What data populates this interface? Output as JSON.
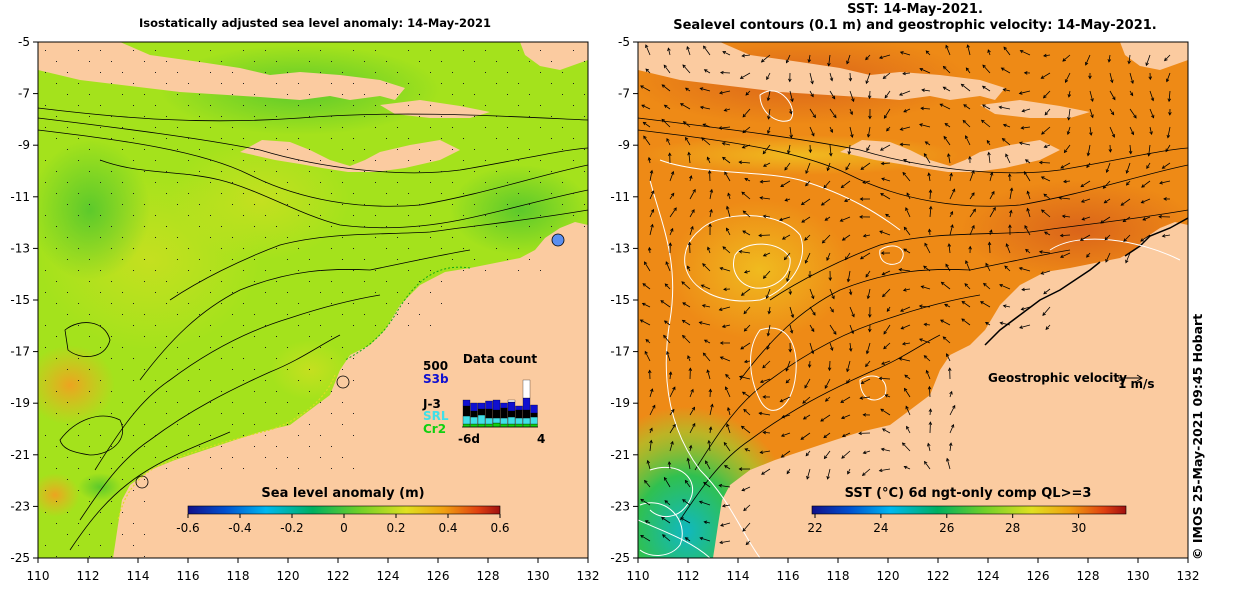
{
  "maps": [
    {
      "title": "Isostatically adjusted sea level anomaly: 14-May-2021",
      "lon_range": [
        110,
        132
      ],
      "lat_range": [
        -25,
        -5
      ],
      "x_ticks": [
        "110",
        "112",
        "114",
        "116",
        "118",
        "120",
        "122",
        "124",
        "126",
        "128",
        "130",
        "132"
      ],
      "y_ticks": [
        "-5",
        "-7",
        "-9",
        "-11",
        "-13",
        "-15",
        "-17",
        "-19",
        "-21",
        "-23",
        "-25"
      ],
      "colorbar": {
        "title": "Sea level anomaly (m)",
        "ticks": [
          "-0.6",
          "-0.4",
          "-0.2",
          "0",
          "0.2",
          "0.4",
          "0.6"
        ],
        "colors": [
          "#10108a",
          "#0060e0",
          "#00c0f0",
          "#00b060",
          "#60d030",
          "#e0e020",
          "#f0a010",
          "#e04010",
          "#b01010"
        ]
      },
      "tide_gauges": [
        {
          "lon": 130.85,
          "lat": -12.7
        },
        {
          "lon": 122.2,
          "lat": -18.1
        },
        {
          "lon": 114.15,
          "lat": -22.0
        }
      ],
      "data_count": {
        "title": "Data count",
        "max_label": "500",
        "missions": [
          {
            "name": "S3b",
            "color": "#1010d0"
          },
          {
            "name": "J-3",
            "color": "#000000"
          },
          {
            "name": "SRL",
            "color": "#40e0e8"
          },
          {
            "name": "Cr2",
            "color": "#10d010"
          }
        ],
        "x_label_start": "-6d",
        "x_label_end": "4"
      }
    },
    {
      "title_line1": "SST: 14-May-2021.",
      "title_line2": "Sealevel contours (0.1 m) and geostrophic velocity: 14-May-2021.",
      "lon_range": [
        110,
        132
      ],
      "lat_range": [
        -25,
        -5
      ],
      "x_ticks": [
        "110",
        "112",
        "114",
        "116",
        "118",
        "120",
        "122",
        "124",
        "126",
        "128",
        "130",
        "132"
      ],
      "y_ticks": [
        "-5",
        "-7",
        "-9",
        "-11",
        "-13",
        "-15",
        "-17",
        "-19",
        "-21",
        "-23",
        "-25"
      ],
      "colorbar": {
        "title": "SST (°C) 6d ngt-only comp QL>=3",
        "ticks": [
          "22",
          "24",
          "26",
          "28",
          "30"
        ],
        "colors": [
          "#10108a",
          "#0060e0",
          "#00c0f0",
          "#00b060",
          "#60d030",
          "#e0e020",
          "#f0a010",
          "#e04010",
          "#b01010"
        ]
      },
      "velocity_legend": {
        "label": "Geostrophic velocity",
        "scale": "1 m/s"
      }
    }
  ],
  "credit": "© IMOS 25-May-2021 09:45 Hobart",
  "palette": {
    "land": "#fbcba0",
    "sla_field": "#a4e21c",
    "sst_field": "#ee8a16"
  }
}
